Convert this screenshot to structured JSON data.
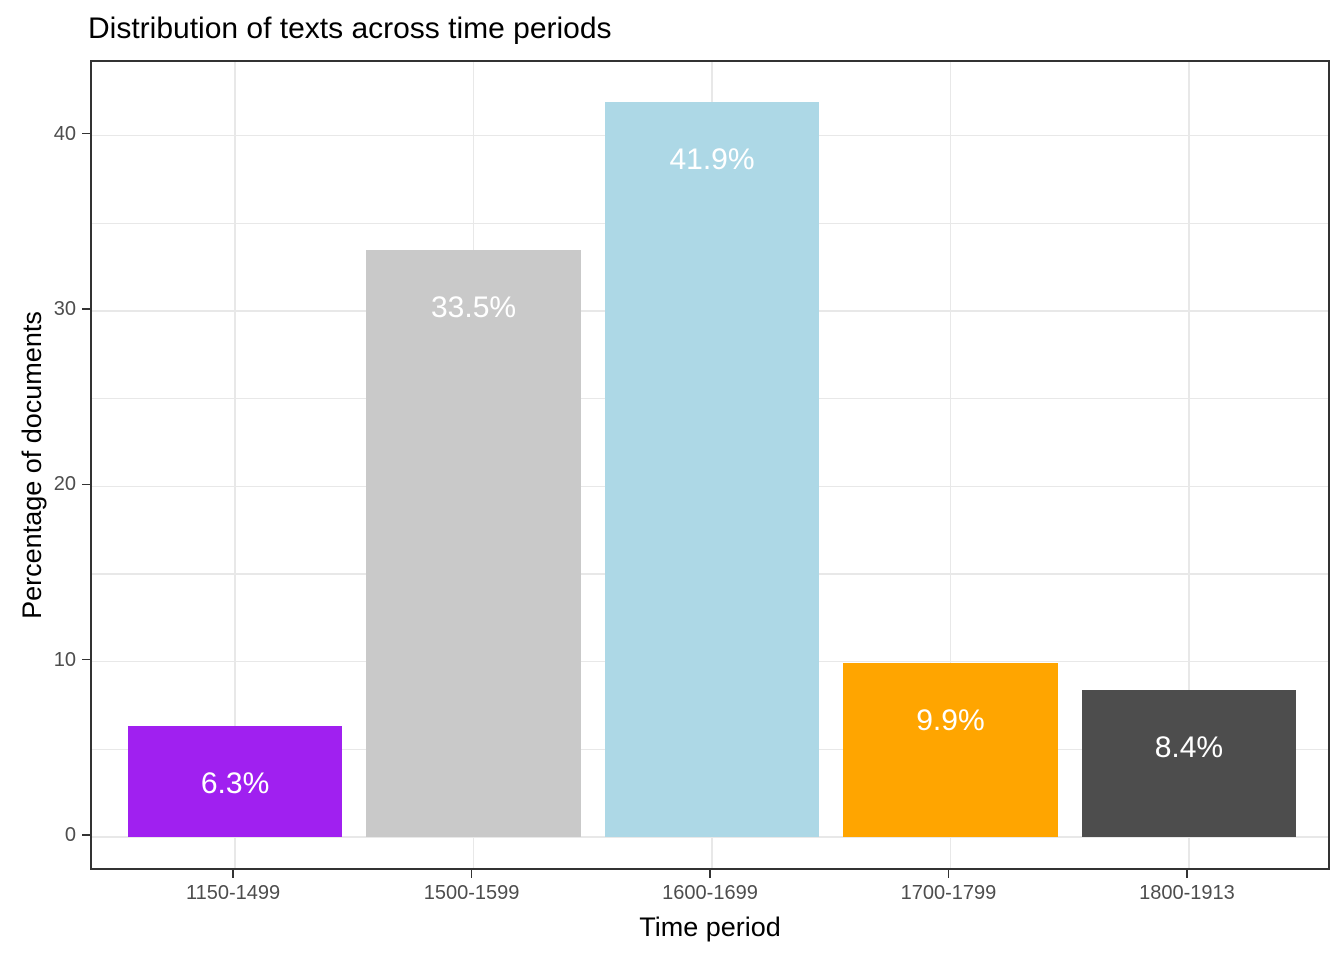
{
  "chart_data": {
    "type": "bar",
    "title": "Distribution of texts across time periods",
    "xlabel": "Time period",
    "ylabel": "Percentage of documents",
    "categories": [
      "1150-1499",
      "1500-1599",
      "1600-1699",
      "1700-1799",
      "1800-1913"
    ],
    "values": [
      6.3,
      33.5,
      41.9,
      9.9,
      8.4
    ],
    "bar_labels": [
      "6.3%",
      "33.5%",
      "41.9%",
      "9.9%",
      "8.4%"
    ],
    "bar_colors": [
      "#A020F0",
      "#C9C9C9",
      "#ADD8E6",
      "#FFA500",
      "#4D4D4D"
    ],
    "bar_label_color": "#FFFFFF",
    "y_ticks": [
      0,
      10,
      20,
      30,
      40
    ],
    "y_grid_values": [
      0,
      5,
      10,
      15,
      20,
      25,
      30,
      35,
      40
    ],
    "ylim": [
      -2,
      44.2
    ],
    "bar_width_fraction": 0.9,
    "discrete_expand": 0.6,
    "grid": true,
    "grid_color": "#E8E8E8",
    "panel_border_color": "#333333",
    "tick_color": "#333333",
    "tick_label_color": "#4D4D4D",
    "title_color": "#000000",
    "legend_position": "none"
  }
}
